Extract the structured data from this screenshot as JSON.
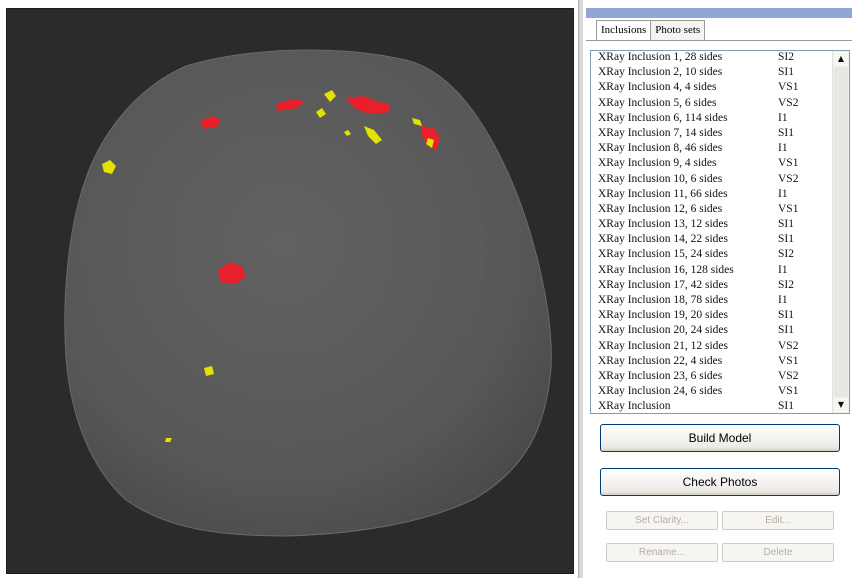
{
  "viewport": {
    "background": "#2b2b2b",
    "model_color": "#5a5a5a",
    "inclusion_colors": {
      "red": "#e8202a",
      "yellow": "#e4e200"
    }
  },
  "tabs": [
    {
      "label": "Inclusions",
      "active": true
    },
    {
      "label": "Photo sets",
      "active": false
    }
  ],
  "inclusions": [
    {
      "name": "XRay Inclusion 1, 28 sides",
      "grade": "SI2"
    },
    {
      "name": "XRay Inclusion 2, 10 sides",
      "grade": "SI1"
    },
    {
      "name": "XRay Inclusion 4, 4 sides",
      "grade": "VS1"
    },
    {
      "name": "XRay Inclusion 5, 6 sides",
      "grade": "VS2"
    },
    {
      "name": "XRay Inclusion 6, 114 sides",
      "grade": "I1"
    },
    {
      "name": "XRay Inclusion 7, 14 sides",
      "grade": "SI1"
    },
    {
      "name": "XRay Inclusion 8, 46 sides",
      "grade": "I1"
    },
    {
      "name": "XRay Inclusion 9, 4 sides",
      "grade": "VS1"
    },
    {
      "name": "XRay Inclusion 10, 6 sides",
      "grade": "VS2"
    },
    {
      "name": "XRay Inclusion 11, 66 sides",
      "grade": "I1"
    },
    {
      "name": "XRay Inclusion 12, 6 sides",
      "grade": "VS1"
    },
    {
      "name": "XRay Inclusion 13, 12 sides",
      "grade": "SI1"
    },
    {
      "name": "XRay Inclusion 14, 22 sides",
      "grade": "SI1"
    },
    {
      "name": "XRay Inclusion 15, 24 sides",
      "grade": "SI2"
    },
    {
      "name": "XRay Inclusion 16, 128 sides",
      "grade": "I1"
    },
    {
      "name": "XRay Inclusion 17, 42 sides",
      "grade": "SI2"
    },
    {
      "name": "XRay Inclusion 18, 78 sides",
      "grade": "I1"
    },
    {
      "name": "XRay Inclusion 19, 20 sides",
      "grade": "SI1"
    },
    {
      "name": "XRay Inclusion 20, 24 sides",
      "grade": "SI1"
    },
    {
      "name": "XRay Inclusion 21, 12 sides",
      "grade": "VS2"
    },
    {
      "name": "XRay Inclusion 22, 4 sides",
      "grade": "VS1"
    },
    {
      "name": "XRay Inclusion 23, 6 sides",
      "grade": "VS2"
    },
    {
      "name": "XRay Inclusion 24, 6 sides",
      "grade": "VS1"
    },
    {
      "name": "XRay Inclusion",
      "grade": "SI1"
    }
  ],
  "buttons": {
    "build_model": "Build Model",
    "check_photos": "Check Photos",
    "set_clarity": "Set Clarity...",
    "edit": "Edit...",
    "rename": "Rename...",
    "delete": "Delete"
  },
  "icons": {
    "scroll_up": "scroll-up-arrow-icon",
    "scroll_down": "scroll-down-arrow-icon"
  }
}
